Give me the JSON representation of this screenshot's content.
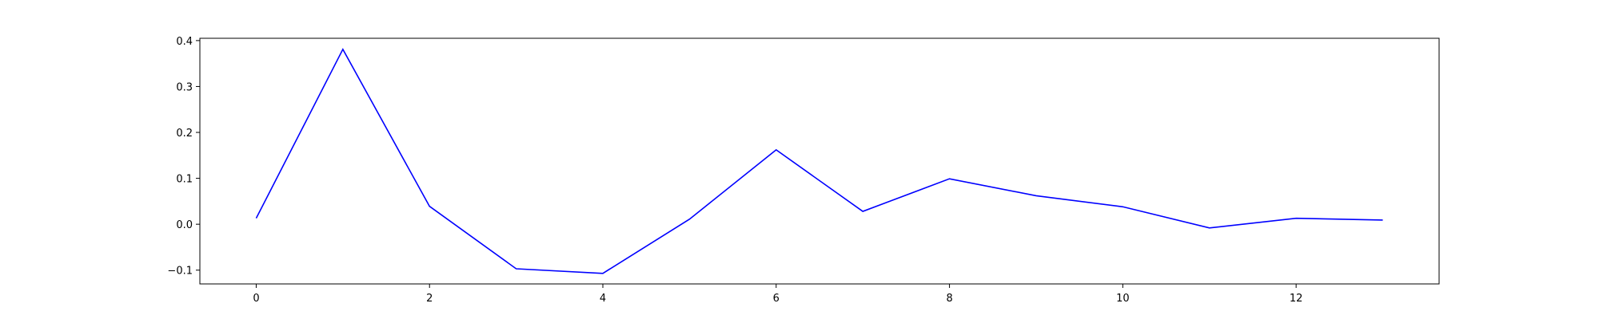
{
  "chart_data": {
    "type": "line",
    "title": "",
    "xlabel": "",
    "ylabel": "",
    "x": [
      0,
      1,
      2,
      3,
      4,
      5,
      6,
      7,
      8,
      9,
      10,
      11,
      12,
      13
    ],
    "series": [
      {
        "values": [
          0.013,
          0.381,
          0.039,
          -0.097,
          -0.107,
          0.011,
          0.162,
          0.028,
          0.099,
          0.062,
          0.038,
          -0.008,
          0.013,
          0.009
        ],
        "color": "#0000ff"
      }
    ],
    "xlim": [
      -0.65,
      13.65
    ],
    "ylim": [
      -0.13,
      0.405
    ],
    "xticks": [
      0,
      2,
      4,
      6,
      8,
      10,
      12
    ],
    "yticks": [
      -0.1,
      0.0,
      0.1,
      0.2,
      0.3,
      0.4
    ],
    "xtick_labels": [
      "0",
      "2",
      "4",
      "6",
      "8",
      "10",
      "12"
    ],
    "ytick_labels": [
      "−0.1",
      "0.0",
      "0.1",
      "0.2",
      "0.3",
      "0.4"
    ],
    "grid": false,
    "legend": "none"
  }
}
